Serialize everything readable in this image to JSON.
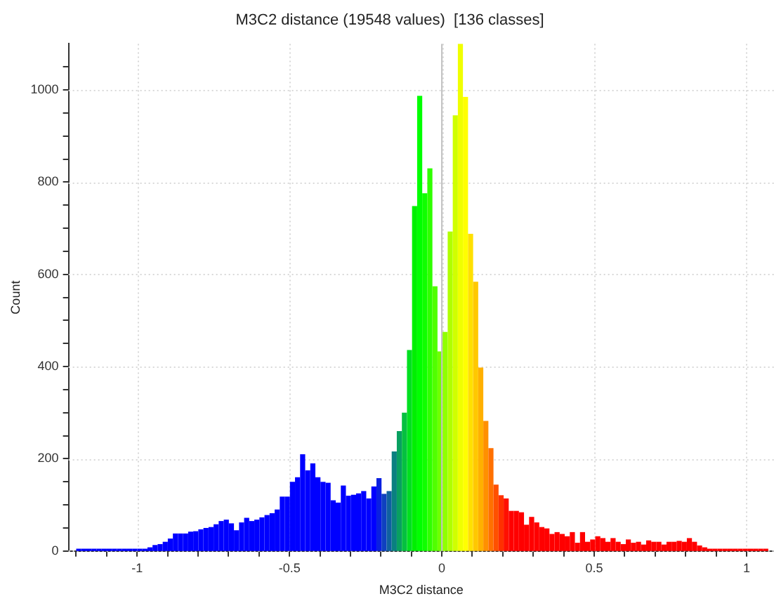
{
  "chart_data": {
    "type": "histogram",
    "title": "M3C2 distance (19548 values)  [136 classes]",
    "xlabel": "M3C2 distance",
    "ylabel": "Count",
    "bins": [
      -1.2,
      -1.1833,
      -1.1666,
      -1.1499,
      -1.1332,
      -1.1165,
      -1.0998,
      -1.0831,
      -1.0664,
      -1.0497,
      -1.033,
      -1.0163,
      -0.9996,
      -0.9829,
      -0.9662,
      -0.9495,
      -0.9328,
      -0.9161,
      -0.8994,
      -0.8827,
      -0.866,
      -0.8493,
      -0.8326,
      -0.8159,
      -0.7992,
      -0.7825,
      -0.7658,
      -0.7491,
      -0.7324,
      -0.7157,
      -0.699,
      -0.6823,
      -0.6656,
      -0.6489,
      -0.6322,
      -0.6155,
      -0.5988,
      -0.5821,
      -0.5654,
      -0.5487,
      -0.532,
      -0.5153,
      -0.4986,
      -0.4819,
      -0.4652,
      -0.4485,
      -0.4318,
      -0.4151,
      -0.3984,
      -0.3817,
      -0.365,
      -0.3483,
      -0.3316,
      -0.3149,
      -0.2982,
      -0.2815,
      -0.2648,
      -0.2481,
      -0.2314,
      -0.2147,
      -0.198,
      -0.1813,
      -0.1646,
      -0.1479,
      -0.1312,
      -0.1145,
      -0.0978,
      -0.0811,
      -0.0644,
      -0.0477,
      -0.031,
      -0.0143,
      0.0024,
      0.0191,
      0.0358,
      0.0525,
      0.0692,
      0.0859,
      0.1026,
      0.1193,
      0.136,
      0.1527,
      0.1694,
      0.1861,
      0.2028,
      0.2195,
      0.2362,
      0.2529,
      0.2696,
      0.2863,
      0.303,
      0.3197,
      0.3364,
      0.3531,
      0.3698,
      0.3865,
      0.4032,
      0.4199,
      0.4366,
      0.4533,
      0.47,
      0.4867,
      0.5034,
      0.5201,
      0.5368,
      0.5535,
      0.5702,
      0.5869,
      0.6036,
      0.6203,
      0.637,
      0.6537,
      0.6704,
      0.6871,
      0.7038,
      0.7205,
      0.7372,
      0.7539,
      0.7706,
      0.7873,
      0.804,
      0.8207,
      0.8374,
      0.8541,
      0.8708,
      0.8875,
      0.9042,
      0.9209,
      0.9376,
      0.9543,
      0.971,
      0.9877,
      1.0044,
      1.0211,
      1.0378,
      1.0545,
      1.0712
    ],
    "values": [
      5,
      5,
      5,
      5,
      5,
      5,
      5,
      5,
      5,
      5,
      5,
      5,
      5,
      5,
      8,
      13,
      15,
      20,
      27,
      38,
      38,
      38,
      42,
      43,
      47,
      50,
      52,
      58,
      65,
      68,
      60,
      45,
      62,
      72,
      65,
      68,
      73,
      78,
      82,
      90,
      118,
      118,
      150,
      160,
      210,
      175,
      190,
      160,
      150,
      148,
      110,
      105,
      142,
      120,
      122,
      125,
      130,
      114,
      140,
      158,
      124,
      130,
      216,
      260,
      300,
      436,
      748,
      987,
      776,
      830,
      574,
      433,
      475,
      693,
      945,
      1100,
      985,
      688,
      584,
      398,
      282,
      223,
      144,
      121,
      114,
      87,
      87,
      84,
      57,
      74,
      62,
      52,
      49,
      37,
      41,
      37,
      32,
      41,
      18,
      41,
      20,
      25,
      32,
      28,
      20,
      28,
      20,
      15,
      25,
      18,
      20,
      14,
      23,
      20,
      20,
      14,
      20,
      20,
      22,
      20,
      28,
      20,
      12,
      8,
      5,
      5,
      5,
      5,
      5,
      5,
      5,
      5,
      5,
      5,
      5,
      5
    ],
    "colors": [
      "#0000ff",
      "#0000ff",
      "#0000ff",
      "#0000ff",
      "#0000ff",
      "#0000ff",
      "#0000ff",
      "#0000ff",
      "#0000ff",
      "#0000ff",
      "#0000ff",
      "#0000ff",
      "#0000ff",
      "#0000ff",
      "#0000ff",
      "#0000ff",
      "#0000ff",
      "#0000ff",
      "#0000ff",
      "#0000ff",
      "#0000ff",
      "#0000ff",
      "#0000ff",
      "#0000ff",
      "#0000ff",
      "#0000ff",
      "#0000ff",
      "#0000ff",
      "#0000ff",
      "#0000ff",
      "#0000ff",
      "#0000ff",
      "#0000ff",
      "#0000ff",
      "#0000ff",
      "#0000ff",
      "#0000ff",
      "#0000ff",
      "#0000ff",
      "#0000ff",
      "#0000ff",
      "#0000ff",
      "#0000ff",
      "#0000ff",
      "#0000ff",
      "#0000ff",
      "#0000ff",
      "#0000ff",
      "#0000ff",
      "#0000ff",
      "#0000ff",
      "#0000ff",
      "#0000ff",
      "#0000ff",
      "#0000ff",
      "#0000ff",
      "#0000ff",
      "#0000ff",
      "#0000ff",
      "#0a20e0",
      "#0f40c0",
      "#0f60a0",
      "#0a8080",
      "#08a060",
      "#05c040",
      "#00e020",
      "#00f000",
      "#00ff00",
      "#10ff00",
      "#30ff00",
      "#50ff00",
      "#70ff00",
      "#90ff00",
      "#b0ff00",
      "#d0ff00",
      "#f0ff00",
      "#ffff00",
      "#ffe000",
      "#ffc800",
      "#ffb000",
      "#ff9000",
      "#ff7000",
      "#ff5000",
      "#ff3000",
      "#ff1000",
      "#ff0000",
      "#ff0000",
      "#ff0000",
      "#ff0000",
      "#ff0000",
      "#ff0000",
      "#ff0000",
      "#ff0000",
      "#ff0000",
      "#ff0000",
      "#ff0000",
      "#ff0000",
      "#ff0000",
      "#ff0000",
      "#ff0000",
      "#ff0000",
      "#ff0000",
      "#ff0000",
      "#ff0000",
      "#ff0000",
      "#ff0000",
      "#ff0000",
      "#ff0000",
      "#ff0000",
      "#ff0000",
      "#ff0000",
      "#ff0000",
      "#ff0000",
      "#ff0000",
      "#ff0000",
      "#ff0000",
      "#ff0000",
      "#ff0000",
      "#ff0000",
      "#ff0000",
      "#ff0000",
      "#ff0000",
      "#ff0000",
      "#ff0000",
      "#ff0000",
      "#ff0000",
      "#ff0000",
      "#ff0000",
      "#ff0000",
      "#ff0000",
      "#ff0000",
      "#ff0000",
      "#ff0000",
      "#ff0000",
      "#ff0000",
      "#ff0000"
    ],
    "xlim": [
      -1.225,
      1.09
    ],
    "xticks": [
      {
        "value": -1.2,
        "label": null
      },
      {
        "value": -1.1,
        "label": null
      },
      -1,
      {
        "value": -0.9,
        "label": null
      },
      {
        "value": -0.8,
        "label": null
      },
      {
        "value": -0.7,
        "label": null
      },
      {
        "value": -0.6,
        "label": null
      },
      -0.5,
      {
        "value": -0.4,
        "label": null
      },
      {
        "value": -0.3,
        "label": null
      },
      {
        "value": -0.2,
        "label": null
      },
      {
        "value": -0.1,
        "label": null
      },
      0,
      {
        "value": 0.1,
        "label": null
      },
      {
        "value": 0.2,
        "label": null
      },
      {
        "value": 0.3,
        "label": null
      },
      {
        "value": 0.4,
        "label": null
      },
      0.5,
      {
        "value": 0.6,
        "label": null
      },
      {
        "value": 0.7,
        "label": null
      },
      {
        "value": 0.8,
        "label": null
      },
      {
        "value": 0.9,
        "label": null
      },
      1
    ],
    "ylim": [
      0,
      1100
    ],
    "yticks": [
      0,
      {
        "value": 50,
        "label": null
      },
      {
        "value": 100,
        "label": null
      },
      {
        "value": 150,
        "label": null
      },
      200,
      {
        "value": 250,
        "label": null
      },
      {
        "value": 300,
        "label": null
      },
      {
        "value": 350,
        "label": null
      },
      400,
      {
        "value": 450,
        "label": null
      },
      {
        "value": 500,
        "label": null
      },
      {
        "value": 550,
        "label": null
      },
      600,
      {
        "value": 650,
        "label": null
      },
      {
        "value": 700,
        "label": null
      },
      {
        "value": 750,
        "label": null
      },
      800,
      {
        "value": 850,
        "label": null
      },
      {
        "value": 900,
        "label": null
      },
      {
        "value": 950,
        "label": null
      },
      1000,
      {
        "value": 1050,
        "label": null
      }
    ],
    "grid": true,
    "ref_lines": [
      {
        "axis": "x",
        "value": 0,
        "color": "#c0c0c0"
      }
    ]
  }
}
